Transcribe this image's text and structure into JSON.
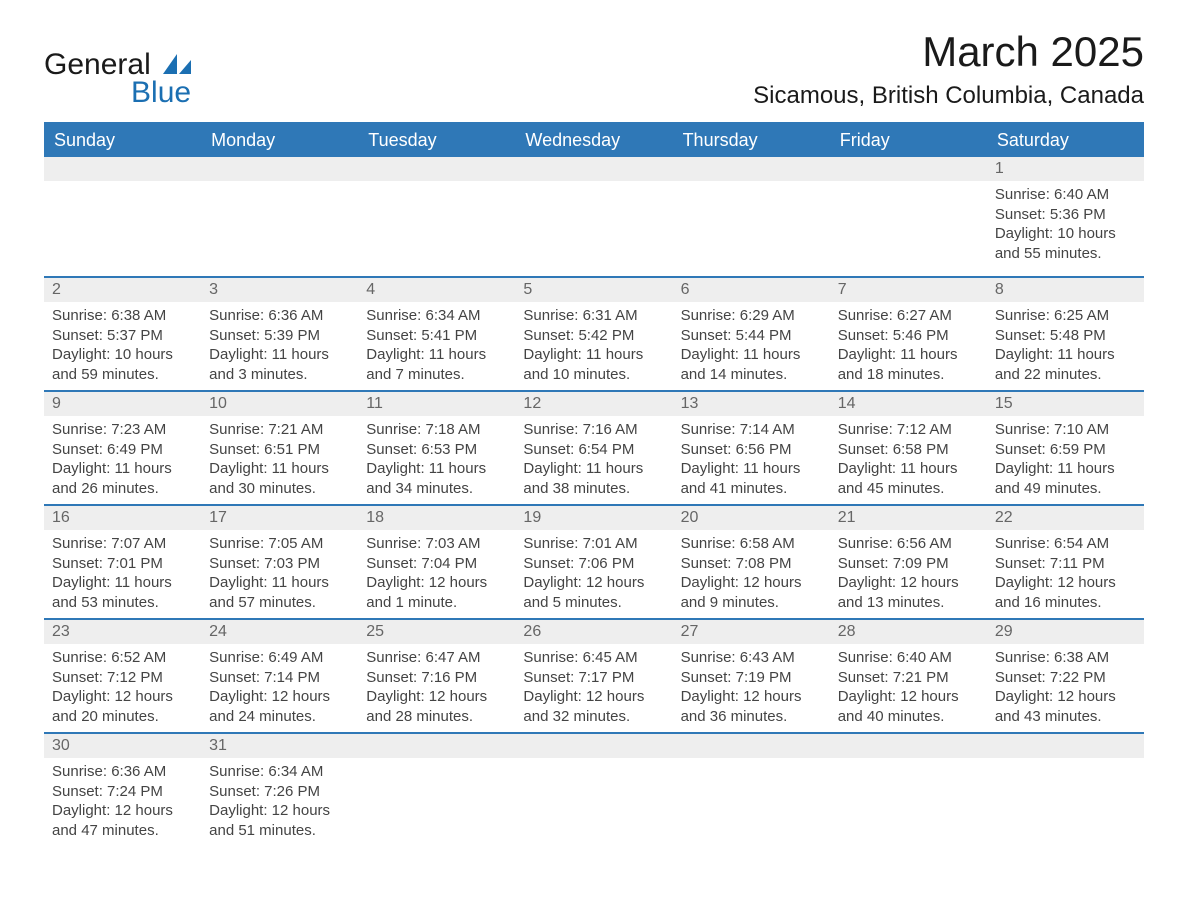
{
  "brand": {
    "general": "General",
    "blue": "Blue",
    "icon_color": "#1b6fb2"
  },
  "title": "March 2025",
  "location": "Sicamous, British Columbia, Canada",
  "colors": {
    "header_bg": "#2f78b7",
    "header_text": "#ffffff",
    "daynum_bg": "#eeeeee",
    "daynum_text": "#666666",
    "body_text": "#444444",
    "row_border": "#2f78b7"
  },
  "typography": {
    "title_fontsize": 42,
    "location_fontsize": 24,
    "header_fontsize": 18,
    "daynum_fontsize": 16,
    "cell_fontsize": 15
  },
  "day_headers": [
    "Sunday",
    "Monday",
    "Tuesday",
    "Wednesday",
    "Thursday",
    "Friday",
    "Saturday"
  ],
  "weeks": [
    [
      null,
      null,
      null,
      null,
      null,
      null,
      {
        "n": "1",
        "sr": "Sunrise: 6:40 AM",
        "ss": "Sunset: 5:36 PM",
        "d1": "Daylight: 10 hours",
        "d2": "and 55 minutes."
      }
    ],
    [
      {
        "n": "2",
        "sr": "Sunrise: 6:38 AM",
        "ss": "Sunset: 5:37 PM",
        "d1": "Daylight: 10 hours",
        "d2": "and 59 minutes."
      },
      {
        "n": "3",
        "sr": "Sunrise: 6:36 AM",
        "ss": "Sunset: 5:39 PM",
        "d1": "Daylight: 11 hours",
        "d2": "and 3 minutes."
      },
      {
        "n": "4",
        "sr": "Sunrise: 6:34 AM",
        "ss": "Sunset: 5:41 PM",
        "d1": "Daylight: 11 hours",
        "d2": "and 7 minutes."
      },
      {
        "n": "5",
        "sr": "Sunrise: 6:31 AM",
        "ss": "Sunset: 5:42 PM",
        "d1": "Daylight: 11 hours",
        "d2": "and 10 minutes."
      },
      {
        "n": "6",
        "sr": "Sunrise: 6:29 AM",
        "ss": "Sunset: 5:44 PM",
        "d1": "Daylight: 11 hours",
        "d2": "and 14 minutes."
      },
      {
        "n": "7",
        "sr": "Sunrise: 6:27 AM",
        "ss": "Sunset: 5:46 PM",
        "d1": "Daylight: 11 hours",
        "d2": "and 18 minutes."
      },
      {
        "n": "8",
        "sr": "Sunrise: 6:25 AM",
        "ss": "Sunset: 5:48 PM",
        "d1": "Daylight: 11 hours",
        "d2": "and 22 minutes."
      }
    ],
    [
      {
        "n": "9",
        "sr": "Sunrise: 7:23 AM",
        "ss": "Sunset: 6:49 PM",
        "d1": "Daylight: 11 hours",
        "d2": "and 26 minutes."
      },
      {
        "n": "10",
        "sr": "Sunrise: 7:21 AM",
        "ss": "Sunset: 6:51 PM",
        "d1": "Daylight: 11 hours",
        "d2": "and 30 minutes."
      },
      {
        "n": "11",
        "sr": "Sunrise: 7:18 AM",
        "ss": "Sunset: 6:53 PM",
        "d1": "Daylight: 11 hours",
        "d2": "and 34 minutes."
      },
      {
        "n": "12",
        "sr": "Sunrise: 7:16 AM",
        "ss": "Sunset: 6:54 PM",
        "d1": "Daylight: 11 hours",
        "d2": "and 38 minutes."
      },
      {
        "n": "13",
        "sr": "Sunrise: 7:14 AM",
        "ss": "Sunset: 6:56 PM",
        "d1": "Daylight: 11 hours",
        "d2": "and 41 minutes."
      },
      {
        "n": "14",
        "sr": "Sunrise: 7:12 AM",
        "ss": "Sunset: 6:58 PM",
        "d1": "Daylight: 11 hours",
        "d2": "and 45 minutes."
      },
      {
        "n": "15",
        "sr": "Sunrise: 7:10 AM",
        "ss": "Sunset: 6:59 PM",
        "d1": "Daylight: 11 hours",
        "d2": "and 49 minutes."
      }
    ],
    [
      {
        "n": "16",
        "sr": "Sunrise: 7:07 AM",
        "ss": "Sunset: 7:01 PM",
        "d1": "Daylight: 11 hours",
        "d2": "and 53 minutes."
      },
      {
        "n": "17",
        "sr": "Sunrise: 7:05 AM",
        "ss": "Sunset: 7:03 PM",
        "d1": "Daylight: 11 hours",
        "d2": "and 57 minutes."
      },
      {
        "n": "18",
        "sr": "Sunrise: 7:03 AM",
        "ss": "Sunset: 7:04 PM",
        "d1": "Daylight: 12 hours",
        "d2": "and 1 minute."
      },
      {
        "n": "19",
        "sr": "Sunrise: 7:01 AM",
        "ss": "Sunset: 7:06 PM",
        "d1": "Daylight: 12 hours",
        "d2": "and 5 minutes."
      },
      {
        "n": "20",
        "sr": "Sunrise: 6:58 AM",
        "ss": "Sunset: 7:08 PM",
        "d1": "Daylight: 12 hours",
        "d2": "and 9 minutes."
      },
      {
        "n": "21",
        "sr": "Sunrise: 6:56 AM",
        "ss": "Sunset: 7:09 PM",
        "d1": "Daylight: 12 hours",
        "d2": "and 13 minutes."
      },
      {
        "n": "22",
        "sr": "Sunrise: 6:54 AM",
        "ss": "Sunset: 7:11 PM",
        "d1": "Daylight: 12 hours",
        "d2": "and 16 minutes."
      }
    ],
    [
      {
        "n": "23",
        "sr": "Sunrise: 6:52 AM",
        "ss": "Sunset: 7:12 PM",
        "d1": "Daylight: 12 hours",
        "d2": "and 20 minutes."
      },
      {
        "n": "24",
        "sr": "Sunrise: 6:49 AM",
        "ss": "Sunset: 7:14 PM",
        "d1": "Daylight: 12 hours",
        "d2": "and 24 minutes."
      },
      {
        "n": "25",
        "sr": "Sunrise: 6:47 AM",
        "ss": "Sunset: 7:16 PM",
        "d1": "Daylight: 12 hours",
        "d2": "and 28 minutes."
      },
      {
        "n": "26",
        "sr": "Sunrise: 6:45 AM",
        "ss": "Sunset: 7:17 PM",
        "d1": "Daylight: 12 hours",
        "d2": "and 32 minutes."
      },
      {
        "n": "27",
        "sr": "Sunrise: 6:43 AM",
        "ss": "Sunset: 7:19 PM",
        "d1": "Daylight: 12 hours",
        "d2": "and 36 minutes."
      },
      {
        "n": "28",
        "sr": "Sunrise: 6:40 AM",
        "ss": "Sunset: 7:21 PM",
        "d1": "Daylight: 12 hours",
        "d2": "and 40 minutes."
      },
      {
        "n": "29",
        "sr": "Sunrise: 6:38 AM",
        "ss": "Sunset: 7:22 PM",
        "d1": "Daylight: 12 hours",
        "d2": "and 43 minutes."
      }
    ],
    [
      {
        "n": "30",
        "sr": "Sunrise: 6:36 AM",
        "ss": "Sunset: 7:24 PM",
        "d1": "Daylight: 12 hours",
        "d2": "and 47 minutes."
      },
      {
        "n": "31",
        "sr": "Sunrise: 6:34 AM",
        "ss": "Sunset: 7:26 PM",
        "d1": "Daylight: 12 hours",
        "d2": "and 51 minutes."
      },
      null,
      null,
      null,
      null,
      null
    ]
  ]
}
